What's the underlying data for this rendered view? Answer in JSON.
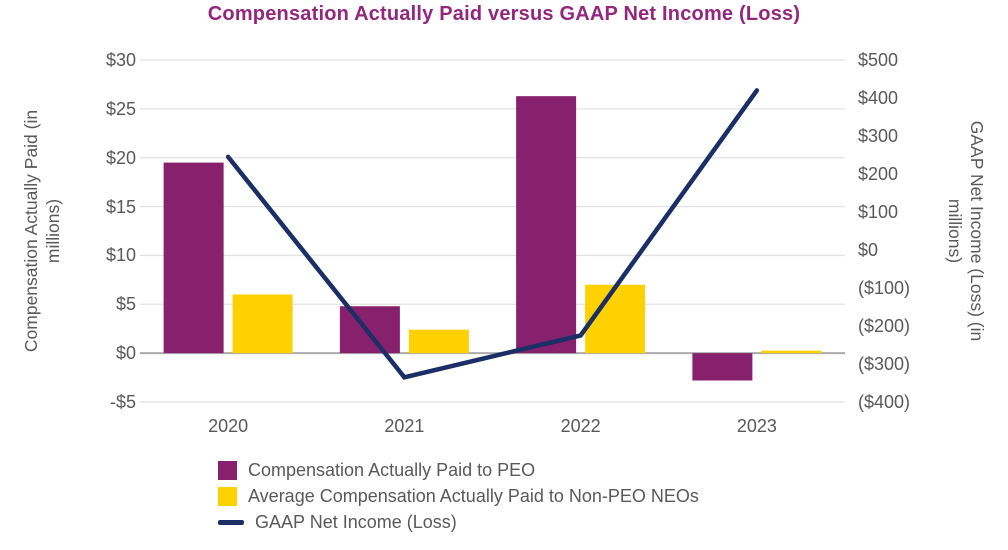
{
  "title": "Compensation Actually Paid versus GAAP Net Income (Loss)",
  "colors": {
    "title_text": "#92277D",
    "peo_bar": "#87216E",
    "neo_bar": "#FFD100",
    "net_income_line": "#1B2F66",
    "axis_text": "#595959",
    "gridline": "#E2E2E2",
    "zero_line": "#ABABAB"
  },
  "chart_data": {
    "type": "combo-bar-line",
    "categories": [
      "2020",
      "2021",
      "2022",
      "2023"
    ],
    "series": [
      {
        "name": "Compensation Actually Paid to PEO",
        "type": "bar",
        "axis": "left",
        "color": "#87216E",
        "values": [
          19.5,
          4.8,
          26.3,
          -2.8
        ]
      },
      {
        "name": "Average Compensation Actually Paid to Non-PEO NEOs",
        "type": "bar",
        "axis": "left",
        "color": "#FFD100",
        "values": [
          6.0,
          2.4,
          7.0,
          0.1
        ]
      },
      {
        "name": "GAAP Net Income (Loss)",
        "type": "line",
        "axis": "right",
        "color": "#1B2F66",
        "values": [
          245,
          -335,
          -225,
          420
        ]
      }
    ],
    "left_axis": {
      "title": "Compensation Actually Paid (in millions)",
      "ticks": [
        "$30",
        "$25",
        "$20",
        "$15",
        "$10",
        "$5",
        "$0",
        "-$5"
      ],
      "tick_values": [
        30,
        25,
        20,
        15,
        10,
        5,
        0,
        -5
      ],
      "range": [
        -5,
        30
      ]
    },
    "right_axis": {
      "title": "GAAP Net Income (Loss) (in millions)",
      "ticks": [
        "$500",
        "$400",
        "$300",
        "$200",
        "$100",
        "$0",
        "($100)",
        "($200)",
        "($300)",
        "($400)"
      ],
      "tick_values": [
        500,
        400,
        300,
        200,
        100,
        0,
        -100,
        -200,
        -300,
        -400
      ],
      "range": [
        -400,
        500
      ]
    },
    "grid": "horizontal-on-left-axis-ticks",
    "legend_position": "bottom-left"
  }
}
